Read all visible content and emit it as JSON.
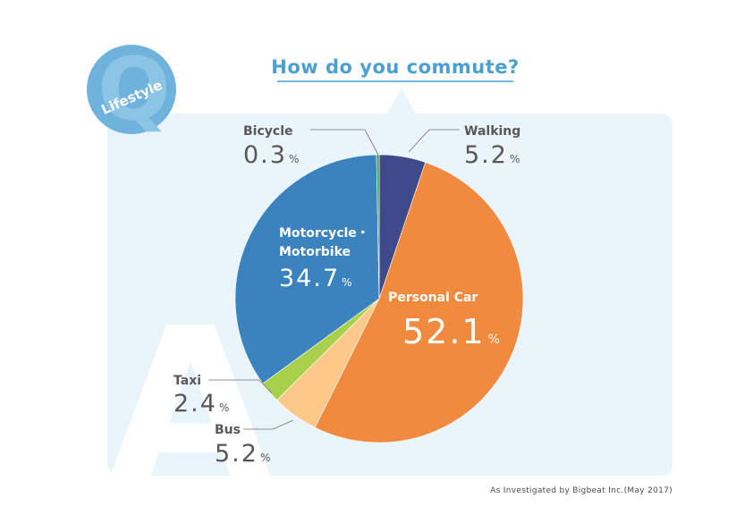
{
  "badge": {
    "letter": "Q",
    "category": "Lifestyle"
  },
  "backdrop_letter": "A",
  "footnote": "As Investigated by Bigbeat Inc.(May 2017)",
  "colors": {
    "panel": "#eaf4fb",
    "badge": "#6fb3dd",
    "title": "#4a9fd3",
    "label_text": "#595757"
  },
  "chart_data": {
    "type": "pie",
    "title": "How do you commute?",
    "unit": "%",
    "start": "12 o'clock",
    "direction": "clockwise",
    "slices": [
      {
        "id": "walking",
        "label": "Walking",
        "value": 5.2,
        "value_text": "5.2",
        "color": "#3f4a8a"
      },
      {
        "id": "personal-car",
        "label": "Personal Car",
        "value": 52.1,
        "value_text": "52.1",
        "color": "#f08a3e"
      },
      {
        "id": "bus",
        "label": "Bus",
        "value": 5.2,
        "value_text": "5.2",
        "color": "#fcc98a"
      },
      {
        "id": "taxi",
        "label": "Taxi",
        "value": 2.4,
        "value_text": "2.4",
        "color": "#a8d04a"
      },
      {
        "id": "motorcycle",
        "label": "Motorcycle・Motorbike",
        "label_lines": [
          "Motorcycle・",
          "Motorbike"
        ],
        "value": 34.7,
        "value_text": "34.7",
        "color": "#3a83bf"
      },
      {
        "id": "bicycle",
        "label": "Bicycle",
        "value": 0.3,
        "value_text": "0.3",
        "color": "#3da447"
      }
    ]
  }
}
